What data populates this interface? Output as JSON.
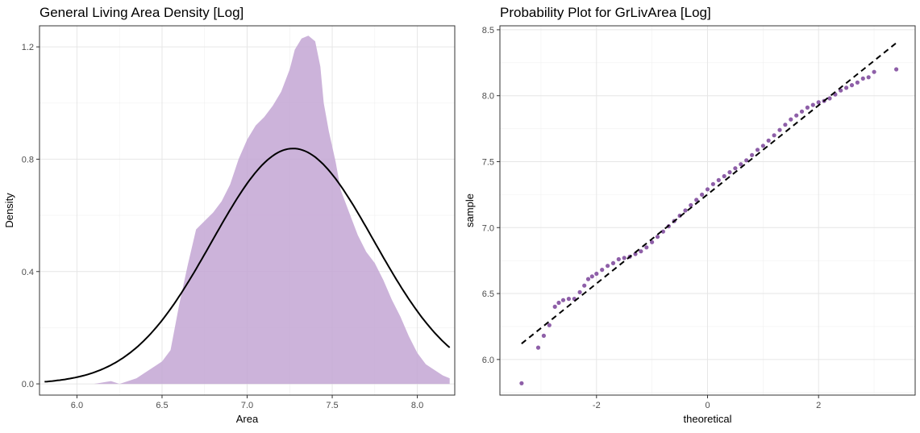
{
  "chart_data": [
    {
      "type": "area",
      "title": "General Living Area Density [Log]",
      "xlabel": "Area",
      "ylabel": "Density",
      "xlim": [
        5.78,
        8.22
      ],
      "ylim": [
        -0.04,
        1.275
      ],
      "x_ticks": [
        6.0,
        6.5,
        7.0,
        7.5,
        8.0
      ],
      "x_tick_labels": [
        "6.0",
        "6.5",
        "7.0",
        "7.5",
        "8.0"
      ],
      "y_ticks": [
        0.0,
        0.4,
        0.8,
        1.2
      ],
      "y_tick_labels": [
        "0.0",
        "0.4",
        "0.8",
        "1.2"
      ],
      "grid": true,
      "series": [
        {
          "kind": "empirical-density",
          "color": "#c3a6d3",
          "x": [
            6.1,
            6.2,
            6.25,
            6.3,
            6.35,
            6.4,
            6.45,
            6.5,
            6.55,
            6.6,
            6.65,
            6.7,
            6.75,
            6.8,
            6.85,
            6.9,
            6.95,
            7.0,
            7.05,
            7.1,
            7.15,
            7.2,
            7.25,
            7.28,
            7.32,
            7.36,
            7.4,
            7.43,
            7.45,
            7.48,
            7.52,
            7.55,
            7.6,
            7.65,
            7.7,
            7.75,
            7.8,
            7.85,
            7.9,
            7.95,
            8.0,
            8.05,
            8.1,
            8.15,
            8.19
          ],
          "y": [
            0.0,
            0.01,
            0.0,
            0.01,
            0.02,
            0.04,
            0.06,
            0.08,
            0.12,
            0.28,
            0.42,
            0.55,
            0.58,
            0.61,
            0.65,
            0.71,
            0.8,
            0.87,
            0.92,
            0.95,
            0.99,
            1.04,
            1.12,
            1.19,
            1.23,
            1.24,
            1.22,
            1.13,
            1.0,
            0.9,
            0.79,
            0.69,
            0.61,
            0.53,
            0.47,
            0.43,
            0.37,
            0.3,
            0.24,
            0.17,
            0.11,
            0.07,
            0.05,
            0.03,
            0.02
          ]
        },
        {
          "kind": "normal-fit",
          "color": "#000000",
          "mean": 7.27,
          "sd": 0.476,
          "x_range": [
            5.81,
            8.19
          ]
        }
      ]
    },
    {
      "type": "scatter",
      "title": "Probability Plot for GrLivArea [Log]",
      "xlabel": "theoretical",
      "ylabel": "sample",
      "xlim": [
        -3.74,
        3.74
      ],
      "ylim": [
        5.73,
        8.53
      ],
      "x_ticks": [
        -2,
        0,
        2
      ],
      "x_tick_labels": [
        "-2",
        "0",
        "2"
      ],
      "y_ticks": [
        6.0,
        6.5,
        7.0,
        7.5,
        8.0,
        8.5
      ],
      "y_tick_labels": [
        "6.0",
        "6.5",
        "7.0",
        "7.5",
        "8.0",
        "8.5"
      ],
      "grid": true,
      "point_color": "#8e5fa8",
      "reference_line": {
        "style": "dashed",
        "color": "#000000",
        "from": [
          -3.35,
          6.12
        ],
        "to": [
          3.4,
          8.4
        ]
      },
      "points": [
        [
          -3.35,
          5.82
        ],
        [
          -3.05,
          6.09
        ],
        [
          -2.95,
          6.18
        ],
        [
          -2.85,
          6.26
        ],
        [
          -2.75,
          6.4
        ],
        [
          -2.68,
          6.43
        ],
        [
          -2.6,
          6.45
        ],
        [
          -2.5,
          6.46
        ],
        [
          -2.4,
          6.46
        ],
        [
          -2.3,
          6.51
        ],
        [
          -2.22,
          6.56
        ],
        [
          -2.15,
          6.61
        ],
        [
          -2.08,
          6.63
        ],
        [
          -2.0,
          6.65
        ],
        [
          -1.9,
          6.68
        ],
        [
          -1.8,
          6.71
        ],
        [
          -1.7,
          6.73
        ],
        [
          -1.6,
          6.76
        ],
        [
          -1.5,
          6.77
        ],
        [
          -1.4,
          6.78
        ],
        [
          -1.3,
          6.8
        ],
        [
          -1.2,
          6.82
        ],
        [
          -1.1,
          6.85
        ],
        [
          -1.0,
          6.89
        ],
        [
          -0.9,
          6.93
        ],
        [
          -0.8,
          6.97
        ],
        [
          -0.7,
          7.01
        ],
        [
          -0.6,
          7.05
        ],
        [
          -0.5,
          7.09
        ],
        [
          -0.4,
          7.13
        ],
        [
          -0.3,
          7.17
        ],
        [
          -0.2,
          7.21
        ],
        [
          -0.1,
          7.25
        ],
        [
          0.0,
          7.29
        ],
        [
          0.1,
          7.33
        ],
        [
          0.2,
          7.36
        ],
        [
          0.3,
          7.39
        ],
        [
          0.4,
          7.42
        ],
        [
          0.5,
          7.45
        ],
        [
          0.6,
          7.48
        ],
        [
          0.7,
          7.51
        ],
        [
          0.8,
          7.55
        ],
        [
          0.9,
          7.59
        ],
        [
          1.0,
          7.62
        ],
        [
          1.1,
          7.66
        ],
        [
          1.2,
          7.7
        ],
        [
          1.3,
          7.74
        ],
        [
          1.4,
          7.78
        ],
        [
          1.5,
          7.82
        ],
        [
          1.6,
          7.85
        ],
        [
          1.7,
          7.88
        ],
        [
          1.8,
          7.91
        ],
        [
          1.9,
          7.93
        ],
        [
          2.0,
          7.95
        ],
        [
          2.1,
          7.96
        ],
        [
          2.2,
          7.98
        ],
        [
          2.3,
          8.01
        ],
        [
          2.4,
          8.04
        ],
        [
          2.5,
          8.06
        ],
        [
          2.6,
          8.08
        ],
        [
          2.7,
          8.1
        ],
        [
          2.8,
          8.13
        ],
        [
          2.9,
          8.14
        ],
        [
          3.0,
          8.18
        ],
        [
          3.4,
          8.2
        ]
      ]
    }
  ]
}
